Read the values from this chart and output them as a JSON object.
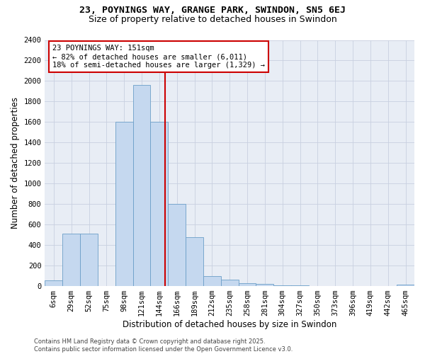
{
  "title1": "23, POYNINGS WAY, GRANGE PARK, SWINDON, SN5 6EJ",
  "title2": "Size of property relative to detached houses in Swindon",
  "xlabel": "Distribution of detached houses by size in Swindon",
  "ylabel": "Number of detached properties",
  "categories": [
    "6sqm",
    "29sqm",
    "52sqm",
    "75sqm",
    "98sqm",
    "121sqm",
    "144sqm",
    "166sqm",
    "189sqm",
    "212sqm",
    "235sqm",
    "258sqm",
    "281sqm",
    "304sqm",
    "327sqm",
    "350sqm",
    "373sqm",
    "396sqm",
    "419sqm",
    "442sqm",
    "465sqm"
  ],
  "values": [
    55,
    510,
    510,
    0,
    1600,
    1960,
    1600,
    800,
    480,
    100,
    60,
    30,
    20,
    10,
    5,
    0,
    0,
    0,
    0,
    0,
    15
  ],
  "bar_color": "#c5d8ef",
  "bar_edge_color": "#6b9ec8",
  "vline_color": "#cc0000",
  "annotation_line1": "23 POYNINGS WAY: 151sqm",
  "annotation_line2": "← 82% of detached houses are smaller (6,011)",
  "annotation_line3": "18% of semi-detached houses are larger (1,329) →",
  "annotation_box_color": "#ffffff",
  "annotation_box_edge": "#cc0000",
  "ylim": [
    0,
    2400
  ],
  "yticks": [
    0,
    200,
    400,
    600,
    800,
    1000,
    1200,
    1400,
    1600,
    1800,
    2000,
    2200,
    2400
  ],
  "grid_color": "#c8d0e0",
  "bg_color": "#e8edf5",
  "footer": "Contains HM Land Registry data © Crown copyright and database right 2025.\nContains public sector information licensed under the Open Government Licence v3.0.",
  "title1_fontsize": 9.5,
  "title2_fontsize": 9,
  "xlabel_fontsize": 8.5,
  "ylabel_fontsize": 8.5,
  "tick_fontsize": 7.5,
  "annotation_fontsize": 7.5,
  "footer_fontsize": 6
}
